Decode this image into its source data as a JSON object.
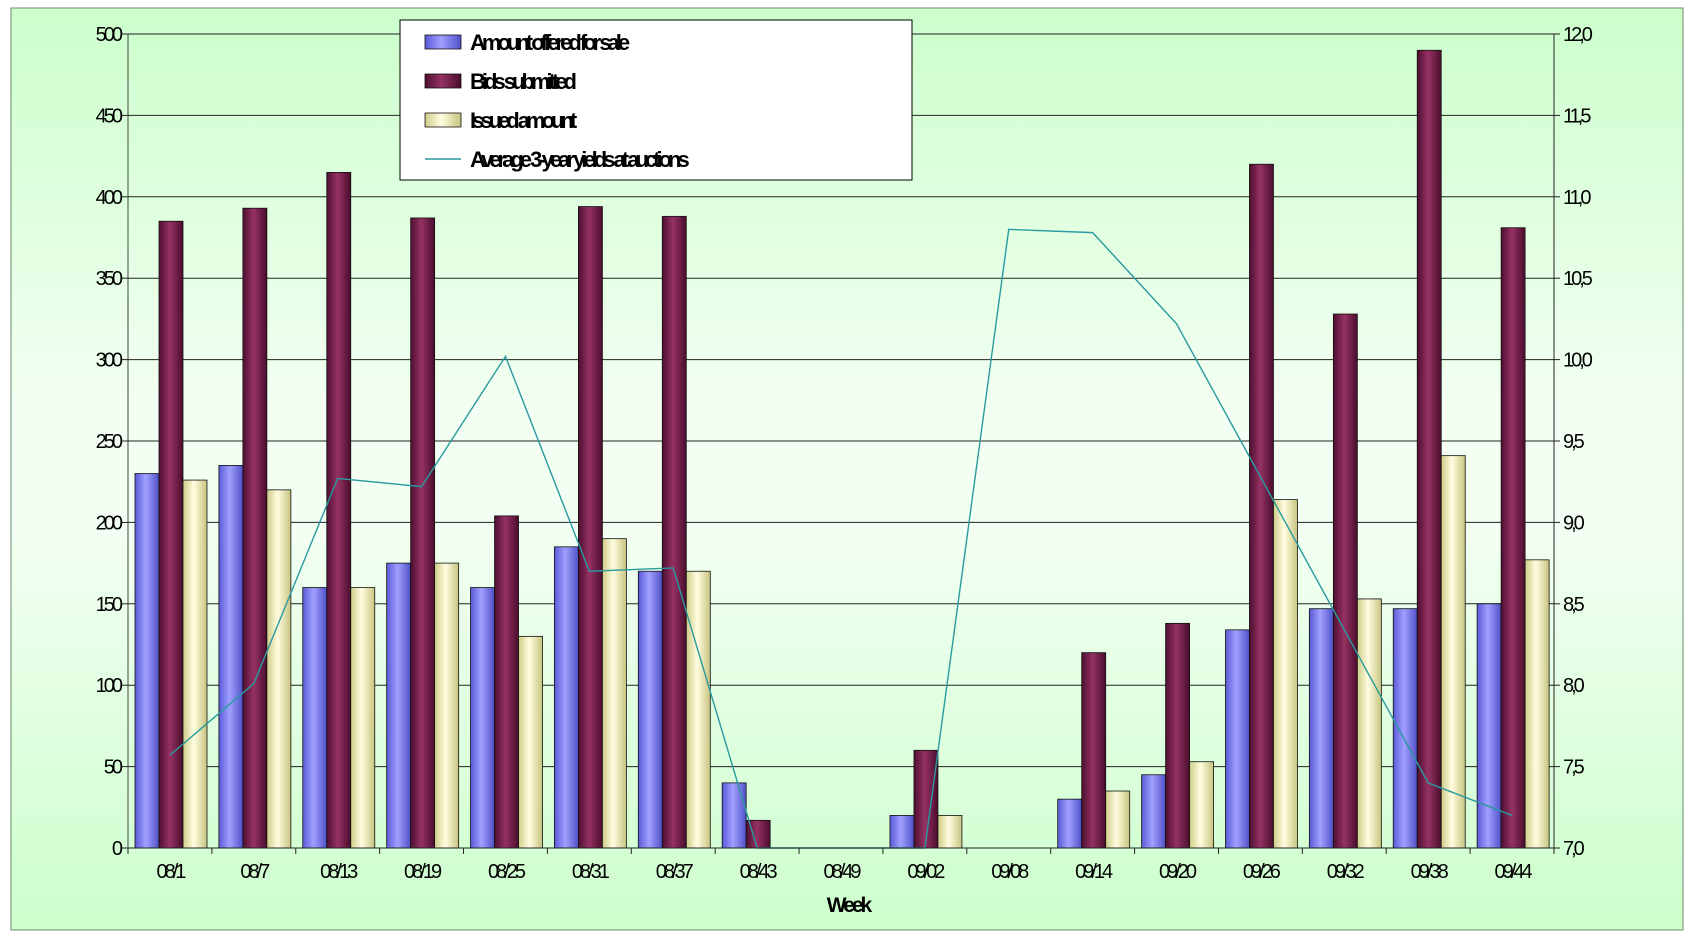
{
  "chart_data": {
    "type": "bar",
    "xlabel": "Week",
    "ylabel": "",
    "y2label": "",
    "categories": [
      "08/1",
      "08/7",
      "08/13",
      "08/19",
      "08/25",
      "08/31",
      "08/37",
      "08/43",
      "08/49",
      "09/02",
      "09/08",
      "09/14",
      "09/20",
      "09/26",
      "09/32",
      "09/38",
      "09/44"
    ],
    "ylim": [
      0,
      500
    ],
    "yticks": [
      "0",
      "50",
      "100",
      "150",
      "200",
      "250",
      "300",
      "350",
      "400",
      "450",
      "500"
    ],
    "y2lim": [
      7.0,
      12.0
    ],
    "y2ticks": [
      "7,0",
      "7,5",
      "8,0",
      "8,5",
      "9,0",
      "9,5",
      "10,0",
      "10,5",
      "11,0",
      "11,5",
      "12,0"
    ],
    "grid": true,
    "legend_position": "top-left",
    "series": [
      {
        "name": "Amount offered for sale",
        "kind": "bar",
        "color": "#8080f0",
        "values": [
          230,
          235,
          160,
          175,
          160,
          185,
          170,
          40,
          0,
          20,
          0,
          30,
          45,
          134,
          147,
          147,
          150
        ]
      },
      {
        "name": "Bids submitted",
        "kind": "bar",
        "color": "#7a1f4f",
        "values": [
          385,
          393,
          415,
          387,
          204,
          394,
          388,
          17,
          0,
          60,
          0,
          120,
          138,
          420,
          328,
          490,
          381
        ]
      },
      {
        "name": "Issued amount",
        "kind": "bar",
        "color": "#f2f0b8",
        "values": [
          226,
          220,
          160,
          175,
          130,
          190,
          170,
          0,
          0,
          20,
          0,
          35,
          53,
          214,
          153,
          241,
          177
        ]
      },
      {
        "name": "Average 3-year yields at auctions",
        "kind": "line",
        "axis": "right",
        "color": "#2a9aa0",
        "values": [
          7.57,
          8.01,
          9.27,
          9.22,
          10.02,
          8.7,
          8.72,
          6.95,
          null,
          6.9,
          10.8,
          10.78,
          10.22,
          null,
          null,
          7.4,
          7.2
        ]
      }
    ]
  }
}
